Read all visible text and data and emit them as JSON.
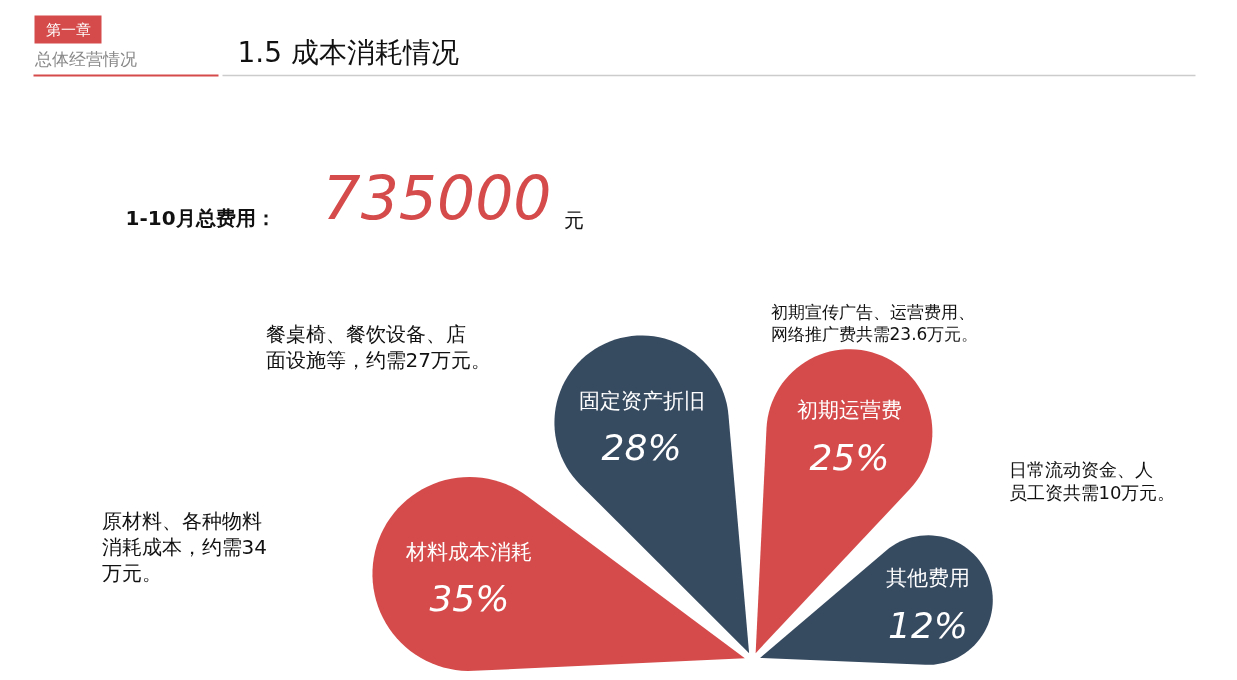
{
  "chart_data": {
    "type": "other",
    "title": "1.5 成本消耗情况",
    "categories": [
      "材料成本消耗",
      "固定资产折旧",
      "初期运营费",
      "其他费用"
    ],
    "values": [
      35,
      28,
      25,
      12
    ],
    "value_labels": [
      "35%",
      "28%",
      "25%",
      "12%"
    ],
    "colors": [
      "#d54b4b",
      "#364a60",
      "#d54b4b",
      "#364a60"
    ],
    "annotations": [
      "第一章",
      "总体经营情况",
      "1-10月总费用：",
      "735000",
      "元",
      "餐桌椅、餐饮设备、店面设施等，约需27万元。",
      "原材料、各种物料消耗成本，约需34万元。",
      "初期宣传广告、运营费用、网络推广费共需23.6万元。",
      "日常流动资金、人员工资共需10万元。"
    ]
  }
}
